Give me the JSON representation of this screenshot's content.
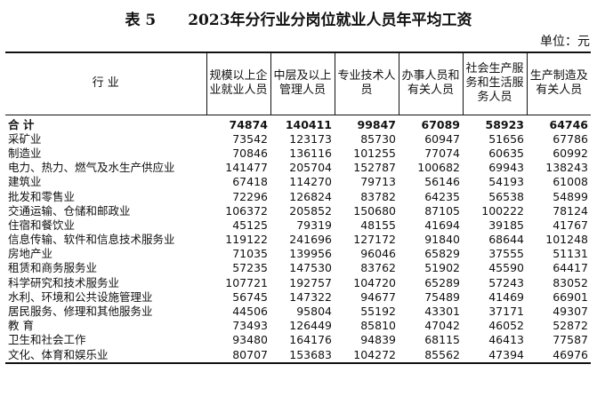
{
  "header": {
    "table_number": "表 5",
    "title": "2023年分行业分岗位就业人员年平均工资",
    "unit": "单位：元"
  },
  "table": {
    "columns": [
      "行  业",
      "规模以上企业就业人员",
      "中层及以上管理人员",
      "专业技术人员",
      "办事人员和有关人员",
      "社会生产服务和生活服务人员",
      "生产制造及有关人员"
    ],
    "rows": [
      [
        "合  计",
        74874,
        140411,
        99847,
        67089,
        58923,
        64746
      ],
      [
        "采矿业",
        73542,
        123173,
        85730,
        60947,
        51656,
        67786
      ],
      [
        "制造业",
        70846,
        136116,
        101255,
        77074,
        60635,
        60992
      ],
      [
        "电力、热力、燃气及水生产供应业",
        141477,
        205704,
        152787,
        100682,
        69943,
        138243
      ],
      [
        "建筑业",
        67418,
        114270,
        79713,
        56146,
        54193,
        61008
      ],
      [
        "批发和零售业",
        72296,
        126824,
        83782,
        64235,
        56538,
        54899
      ],
      [
        "交通运输、仓储和邮政业",
        106372,
        205852,
        150680,
        87105,
        100222,
        78124
      ],
      [
        "住宿和餐饮业",
        45125,
        79319,
        48155,
        41694,
        39185,
        41767
      ],
      [
        "信息传输、软件和信息技术服务业",
        119122,
        241696,
        127172,
        91840,
        68644,
        101248
      ],
      [
        "房地产业",
        71035,
        139956,
        96046,
        65829,
        37555,
        51131
      ],
      [
        "租赁和商务服务业",
        57235,
        147530,
        83762,
        51902,
        45590,
        64417
      ],
      [
        "科学研究和技术服务业",
        107721,
        192757,
        104720,
        65289,
        57243,
        83052
      ],
      [
        "水利、环境和公共设施管理业",
        56745,
        147322,
        94677,
        75489,
        41469,
        66901
      ],
      [
        "居民服务、修理和其他服务业",
        44506,
        95804,
        55192,
        43301,
        37171,
        49307
      ],
      [
        "教  育",
        73493,
        126449,
        85810,
        47042,
        46052,
        52872
      ],
      [
        "卫生和社会工作",
        93480,
        164176,
        94839,
        68115,
        46413,
        77587
      ],
      [
        "文化、体育和娱乐业",
        80707,
        153683,
        104272,
        85562,
        47394,
        46976
      ]
    ]
  }
}
